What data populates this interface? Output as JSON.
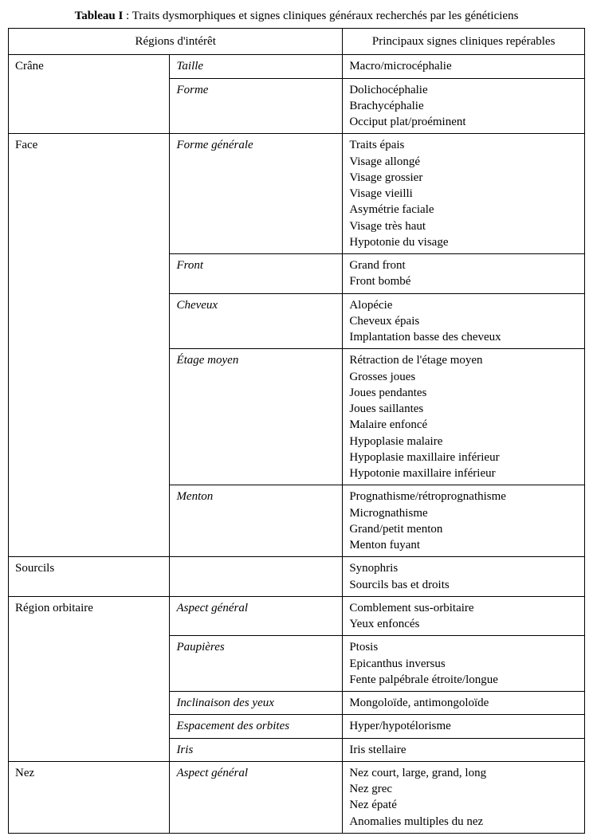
{
  "caption_label": "Tableau I",
  "caption_text": " : Traits dysmorphiques et signes cliniques généraux recherchés par les généticiens",
  "header_left": "Régions d'intérêt",
  "header_right": "Principaux signes cliniques repérables",
  "column_widths_pct": [
    28,
    30,
    42
  ],
  "font_family": "Times New Roman",
  "font_size_pt": 11,
  "border_color": "#000000",
  "background_color": "#ffffff",
  "text_color": "#000000",
  "rows": [
    {
      "region": "Crâne",
      "subcat": "Taille",
      "signs": [
        "Macro/microcéphalie"
      ]
    },
    {
      "region": "",
      "subcat": "Forme",
      "signs": [
        "Dolichocéphalie",
        "Brachycéphalie",
        "Occiput plat/proéminent"
      ]
    },
    {
      "region": "Face",
      "subcat": "Forme générale",
      "signs": [
        "Traits épais",
        "Visage allongé",
        "Visage grossier",
        "Visage vieilli",
        "Asymétrie faciale",
        "Visage très haut",
        "Hypotonie du visage"
      ]
    },
    {
      "region": "",
      "subcat": "Front",
      "signs": [
        "Grand front",
        "Front bombé"
      ]
    },
    {
      "region": "",
      "subcat": "Cheveux",
      "signs": [
        "Alopécie",
        "Cheveux épais",
        "Implantation basse des cheveux"
      ]
    },
    {
      "region": "",
      "subcat": "Étage moyen",
      "signs": [
        "Rétraction de l'étage moyen",
        "Grosses joues",
        "Joues pendantes",
        "Joues saillantes",
        "Malaire enfoncé",
        "Hypoplasie malaire",
        "Hypoplasie maxillaire inférieur",
        "Hypotonie maxillaire inférieur"
      ]
    },
    {
      "region": "",
      "subcat": "Menton",
      "signs": [
        "Prognathisme/rétroprognathisme",
        "Micrognathisme",
        "Grand/petit menton",
        "Menton fuyant"
      ]
    },
    {
      "region": "Sourcils",
      "subcat": "",
      "signs": [
        "Synophris",
        "Sourcils bas et droits"
      ]
    },
    {
      "region": "Région orbitaire",
      "subcat": "Aspect général",
      "signs": [
        "Comblement sus-orbitaire",
        "Yeux enfoncés"
      ]
    },
    {
      "region": "",
      "subcat": "Paupières",
      "signs": [
        "Ptosis",
        "Epicanthus inversus",
        "Fente palpébrale étroite/longue"
      ]
    },
    {
      "region": "",
      "subcat": "Inclinaison des yeux",
      "signs": [
        "Mongoloïde, antimongoloïde"
      ]
    },
    {
      "region": "",
      "subcat": "Espacement des orbites",
      "signs": [
        "Hyper/hypotélorisme"
      ]
    },
    {
      "region": "",
      "subcat": "Iris",
      "signs": [
        "Iris stellaire"
      ]
    },
    {
      "region": "Nez",
      "subcat": "Aspect général",
      "signs": [
        "Nez court, large, grand, long",
        "Nez grec",
        "Nez épaté",
        "Anomalies multiples du nez"
      ]
    }
  ]
}
